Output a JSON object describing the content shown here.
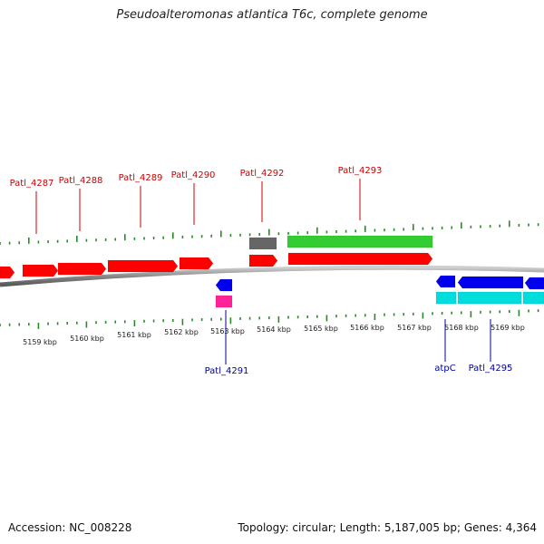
{
  "title": "Pseudoalteromonas atlantica T6c, complete genome",
  "footer": {
    "accession": "Accession: NC_008228",
    "topology": "Topology: circular; Length: 5,187,005 bp; Genes: 4,364"
  },
  "colors": {
    "forward_cds": "#ff0000",
    "reverse_cds": "#0000ee",
    "forward_rna": "#33cc33",
    "reverse_rna": "#00dddd",
    "pseudo": "#666666",
    "misc": "#ff2299",
    "forward_label": "#cc0000",
    "reverse_label": "#000099",
    "ticks": "#2a8a2a",
    "backbone": "#888888"
  },
  "scale": {
    "labels": [
      "5159 kbp",
      "5160 kbp",
      "5161 kbp",
      "5162 kbp",
      "5163 kbp",
      "5164 kbp",
      "5165 kbp",
      "5166 kbp",
      "5167 kbp",
      "5168 kbp",
      "5169 kbp"
    ]
  },
  "labels": {
    "forward": [
      "Patl_4287",
      "Patl_4288",
      "Patl_4289",
      "Patl_4290",
      "Patl_4292",
      "Patl_4293"
    ],
    "reverse": [
      "Patl_4291",
      "atpC",
      "Patl_4295"
    ]
  }
}
